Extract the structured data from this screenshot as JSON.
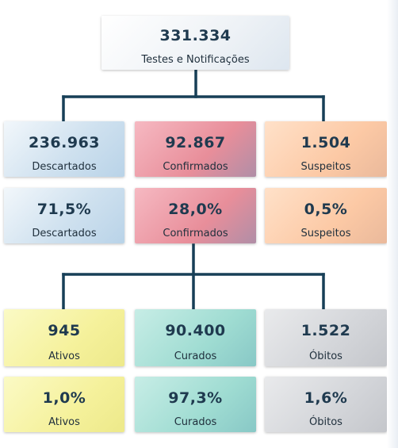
{
  "total": {
    "value": "331.334",
    "label": "Testes e Notificações"
  },
  "row1": [
    {
      "value": "236.963",
      "label": "Descartados"
    },
    {
      "value": "92.867",
      "label": "Confirmados"
    },
    {
      "value": "1.504",
      "label": "Suspeitos"
    }
  ],
  "row2": [
    {
      "value": "71,5%",
      "label": "Descartados"
    },
    {
      "value": "28,0%",
      "label": "Confirmados"
    },
    {
      "value": "0,5%",
      "label": "Suspeitos"
    }
  ],
  "row3": [
    {
      "value": "945",
      "label": "Ativos"
    },
    {
      "value": "90.400",
      "label": "Curados"
    },
    {
      "value": "1.522",
      "label": "Óbitos"
    }
  ],
  "row4": [
    {
      "value": "1,0%",
      "label": "Ativos"
    },
    {
      "value": "97,3%",
      "label": "Curados"
    },
    {
      "value": "1,6%",
      "label": "Óbitos"
    }
  ],
  "colors": {
    "connector": "#173f57",
    "text": "#1f3a4f",
    "descartados": "#cfe1ef",
    "confirmados": "#e88e9a",
    "suspeitos": "#fcc9a5",
    "ativos": "#f5f19b",
    "curados": "#9fdcd2",
    "obitos": "#d3d5d9"
  }
}
